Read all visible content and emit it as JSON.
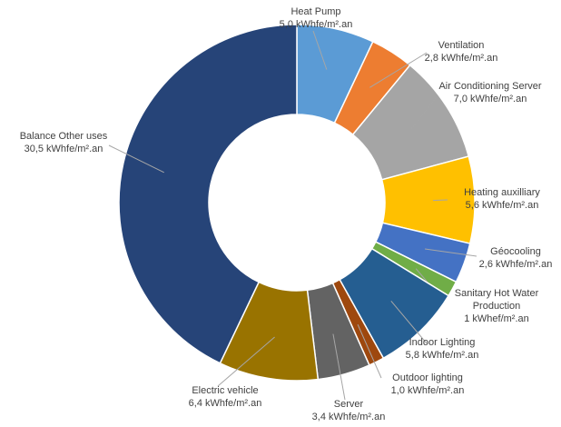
{
  "chart_data": {
    "type": "donut",
    "categories": [
      "Heat Pump",
      "Ventilation",
      "Air Conditioning Server",
      "Heating auxilliary",
      "Géocooling",
      "Sanitary Hot Water Production",
      "Indoor Lighting",
      "Outdoor lighting",
      "Server",
      "Electric vehicle",
      "Balance Other uses"
    ],
    "values": [
      5.0,
      2.8,
      7.0,
      5.6,
      2.6,
      1,
      5.8,
      1.0,
      3.4,
      6.4,
      30.5
    ],
    "value_labels": [
      "5,0 kWhfe/m².an",
      "2,8 kWhfe/m².an",
      "7,0 kWhfe/m².an",
      "5,6 kWhfe/m².an",
      "2,6 kWhfe/m².an",
      "1 kWhef/m².an",
      "5,8 kWhfe/m².an",
      "1,0 kWhfe/m².an",
      "3,4 kWhfe/m².an",
      "6,4 kWhfe/m².an",
      "30,5 kWhfe/m².an"
    ],
    "colors": [
      "#5b9bd5",
      "#ed7d31",
      "#a5a5a5",
      "#ffc000",
      "#4472c4",
      "#70ad47",
      "#255e91",
      "#9e480e",
      "#636363",
      "#997300",
      "#264478"
    ]
  }
}
